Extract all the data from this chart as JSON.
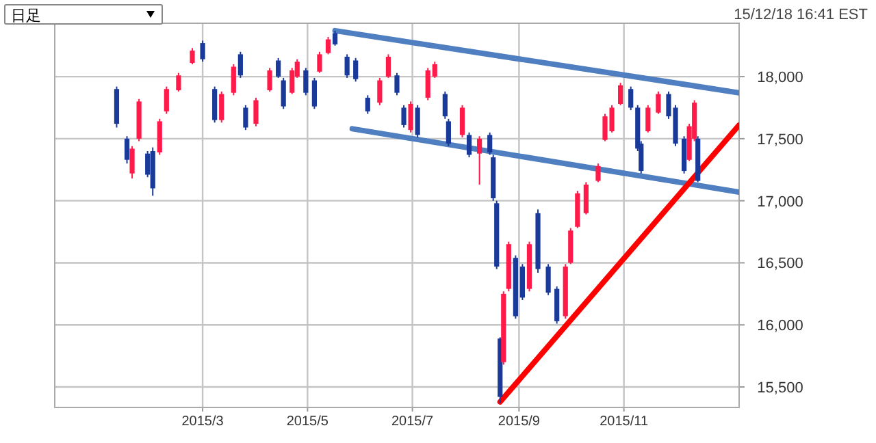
{
  "chart_data": {
    "type": "candlestick",
    "annotations": [
      "日足",
      "15/12/18 16:41 EST"
    ],
    "xlim": [
      "2014-12-05",
      "2016-01-07"
    ],
    "ylim": [
      15335,
      18430
    ],
    "xticks": [
      {
        "value": "2015-03-01",
        "label": "2015/3"
      },
      {
        "value": "2015-05-01",
        "label": "2015/5"
      },
      {
        "value": "2015-07-01",
        "label": "2015/7"
      },
      {
        "value": "2015-09-01",
        "label": "2015/9"
      },
      {
        "value": "2015-11-01",
        "label": "2015/11"
      }
    ],
    "yticks": [
      {
        "value": 15500,
        "label": "15,500"
      },
      {
        "value": 16000,
        "label": "16,000"
      },
      {
        "value": 16500,
        "label": "16,500"
      },
      {
        "value": 17000,
        "label": "17,000"
      },
      {
        "value": 17500,
        "label": "17,500"
      },
      {
        "value": 18000,
        "label": "18,000"
      }
    ],
    "grid": true,
    "x": [
      "2015-01-10",
      "2015-01-16",
      "2015-01-19",
      "2015-01-23",
      "2015-01-28",
      "2015-01-31",
      "2015-02-04",
      "2015-02-08",
      "2015-02-15",
      "2015-02-23",
      "2015-03-01",
      "2015-03-08",
      "2015-03-12",
      "2015-03-19",
      "2015-03-23",
      "2015-03-26",
      "2015-04-01",
      "2015-04-09",
      "2015-04-14",
      "2015-04-17",
      "2015-04-22",
      "2015-04-25",
      "2015-04-30",
      "2015-05-05",
      "2015-05-08",
      "2015-05-13",
      "2015-05-17",
      "2015-05-24",
      "2015-05-29",
      "2015-06-05",
      "2015-06-12",
      "2015-06-17",
      "2015-06-22",
      "2015-06-26",
      "2015-06-30",
      "2015-07-04",
      "2015-07-10",
      "2015-07-14",
      "2015-07-20",
      "2015-07-22",
      "2015-07-30",
      "2015-08-03",
      "2015-08-09",
      "2015-08-15",
      "2015-08-17",
      "2015-08-19",
      "2015-08-21",
      "2015-08-23",
      "2015-08-26",
      "2015-08-30",
      "2015-09-03",
      "2015-09-07",
      "2015-09-12",
      "2015-09-18",
      "2015-09-23",
      "2015-09-28",
      "2015-10-01",
      "2015-10-05",
      "2015-10-10",
      "2015-10-17",
      "2015-10-21",
      "2015-10-25",
      "2015-10-30",
      "2015-11-05",
      "2015-11-09",
      "2015-11-11",
      "2015-11-15",
      "2015-11-21",
      "2015-11-27",
      "2015-12-01",
      "2015-12-06",
      "2015-12-09",
      "2015-12-12",
      "2015-12-14"
    ],
    "ohlc": [
      [
        17900,
        17920,
        17590,
        17620
      ],
      [
        17500,
        17520,
        17300,
        17330
      ],
      [
        17220,
        17440,
        17180,
        17420
      ],
      [
        17500,
        17820,
        17480,
        17800
      ],
      [
        17380,
        17400,
        17190,
        17210
      ],
      [
        17400,
        17430,
        17040,
        17100
      ],
      [
        17390,
        17660,
        17370,
        17640
      ],
      [
        17720,
        17920,
        17700,
        17900
      ],
      [
        17890,
        18030,
        17880,
        18010
      ],
      [
        18110,
        18230,
        18100,
        18210
      ],
      [
        18270,
        18290,
        18120,
        18140
      ],
      [
        17900,
        17920,
        17630,
        17650
      ],
      [
        17650,
        17880,
        17630,
        17860
      ],
      [
        17870,
        18100,
        17850,
        18080
      ],
      [
        18180,
        18200,
        17990,
        18010
      ],
      [
        17750,
        17770,
        17570,
        17590
      ],
      [
        17620,
        17830,
        17600,
        17810
      ],
      [
        17890,
        18070,
        17880,
        18050
      ],
      [
        18130,
        18150,
        17990,
        18000
      ],
      [
        17970,
        17990,
        17740,
        17760
      ],
      [
        17870,
        18070,
        17860,
        18050
      ],
      [
        18000,
        18140,
        17990,
        18120
      ],
      [
        18050,
        18070,
        17850,
        17870
      ],
      [
        17970,
        17990,
        17740,
        17760
      ],
      [
        18040,
        18200,
        18030,
        18180
      ],
      [
        18190,
        18320,
        18180,
        18300
      ],
      [
        18350,
        18370,
        18250,
        18260
      ],
      [
        18160,
        18180,
        17990,
        18010
      ],
      [
        18130,
        18150,
        17960,
        17980
      ],
      [
        17830,
        17850,
        17700,
        17720
      ],
      [
        17790,
        17990,
        17770,
        17970
      ],
      [
        18000,
        18180,
        17990,
        18160
      ],
      [
        18010,
        18030,
        17850,
        17870
      ],
      [
        17750,
        17770,
        17590,
        17610
      ],
      [
        17570,
        17800,
        17550,
        17780
      ],
      [
        17750,
        17770,
        17510,
        17530
      ],
      [
        17830,
        18070,
        17810,
        18050
      ],
      [
        18000,
        18120,
        17990,
        18100
      ],
      [
        17860,
        17880,
        17660,
        17680
      ],
      [
        17640,
        17660,
        17440,
        17460
      ],
      [
        17530,
        17770,
        17510,
        17750
      ],
      [
        17530,
        17550,
        17350,
        17370
      ],
      [
        17380,
        17520,
        17130,
        17500
      ],
      [
        17530,
        17550,
        17370,
        17390
      ],
      [
        17350,
        17370,
        17000,
        17020
      ],
      [
        16980,
        17000,
        16450,
        16470
      ],
      [
        15890,
        15900,
        15370,
        15420
      ],
      [
        15700,
        16270,
        15680,
        16250
      ],
      [
        16290,
        16670,
        16270,
        16650
      ],
      [
        16540,
        16560,
        16050,
        16070
      ],
      [
        16470,
        16490,
        16200,
        16220
      ],
      [
        16290,
        16670,
        16270,
        16650
      ],
      [
        16900,
        16930,
        16420,
        16450
      ],
      [
        16470,
        16490,
        16240,
        16260
      ],
      [
        16290,
        16310,
        16010,
        16030
      ],
      [
        16070,
        16490,
        16050,
        16470
      ],
      [
        16500,
        16780,
        16490,
        16760
      ],
      [
        16790,
        17080,
        16780,
        17060
      ],
      [
        16900,
        17150,
        16890,
        17130
      ],
      [
        17160,
        17300,
        17150,
        17280
      ],
      [
        17490,
        17700,
        17480,
        17680
      ],
      [
        17560,
        17770,
        17550,
        17750
      ],
      [
        17780,
        17950,
        17770,
        17930
      ],
      [
        17900,
        17920,
        17730,
        17750
      ],
      [
        17750,
        17770,
        17400,
        17420
      ],
      [
        17460,
        17480,
        17220,
        17240
      ],
      [
        17560,
        17770,
        17550,
        17750
      ],
      [
        17710,
        17880,
        17700,
        17860
      ],
      [
        17860,
        17880,
        17660,
        17680
      ],
      [
        17750,
        17770,
        17440,
        17460
      ],
      [
        17500,
        17520,
        17220,
        17240
      ],
      [
        17330,
        17620,
        17320,
        17600
      ],
      [
        17500,
        17810,
        17480,
        17790
      ],
      [
        17500,
        17520,
        17150,
        17160
      ]
    ],
    "series": [
      {
        "type": "line",
        "color": "#4f7fc0",
        "x": [
          "2015-05-17",
          "2016-01-07"
        ],
        "values": [
          18370,
          17870
        ]
      },
      {
        "type": "line",
        "color": "#4f7fc0",
        "x": [
          "2015-05-27",
          "2016-01-07"
        ],
        "values": [
          17580,
          17070
        ]
      },
      {
        "type": "line",
        "color": "#ff0000",
        "x": [
          "2015-08-21",
          "2016-01-07"
        ],
        "values": [
          15380,
          17610
        ]
      }
    ]
  }
}
